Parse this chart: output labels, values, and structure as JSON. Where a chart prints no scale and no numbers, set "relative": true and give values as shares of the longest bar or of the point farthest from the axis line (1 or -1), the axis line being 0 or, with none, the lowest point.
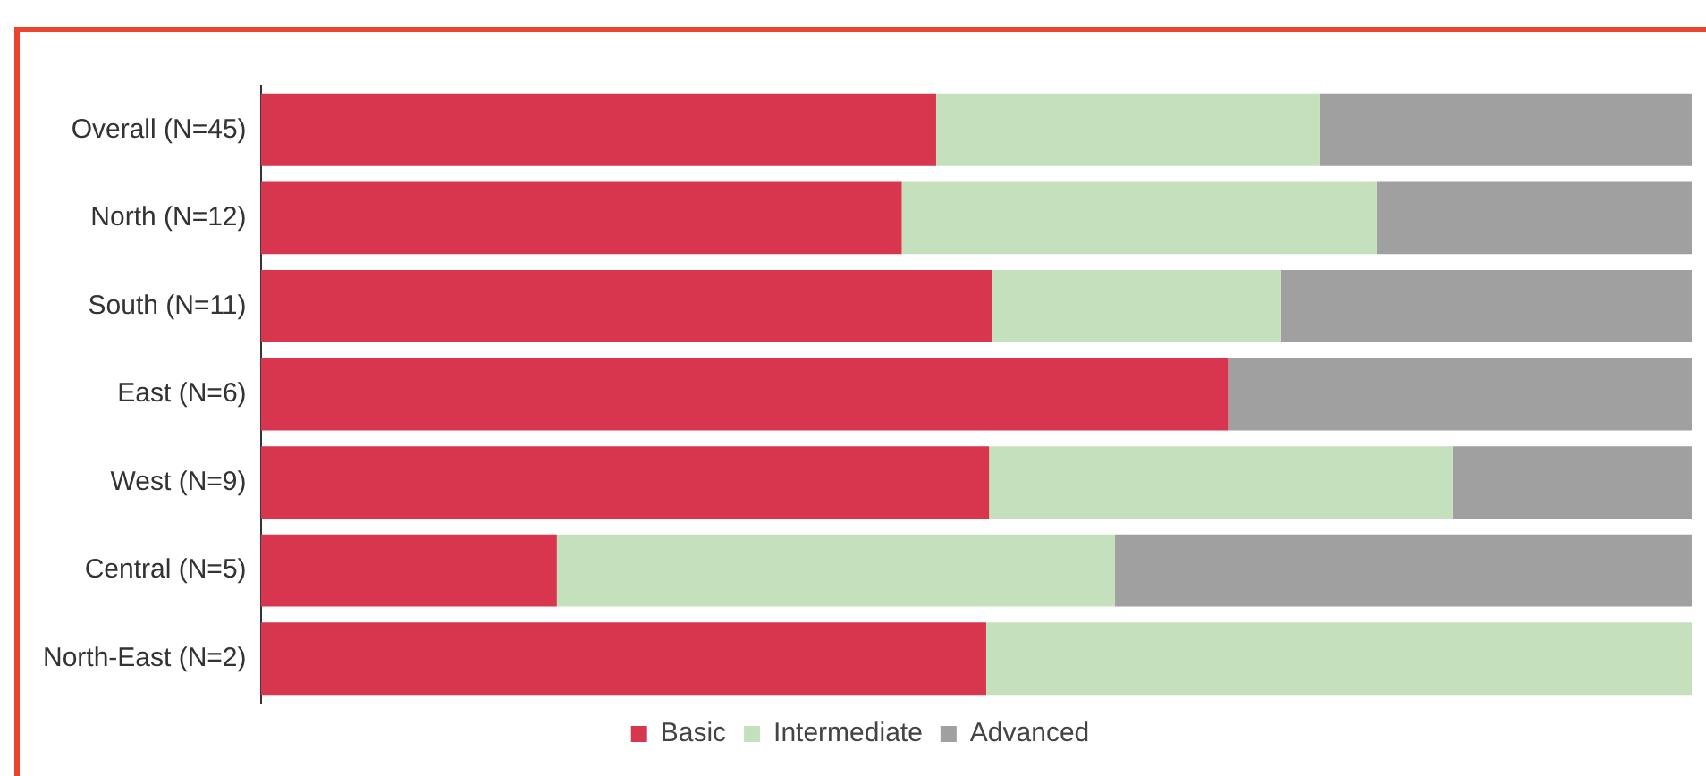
{
  "chart_data": {
    "type": "bar",
    "orientation": "horizontal",
    "stacked": true,
    "relative": true,
    "legend": "bottom",
    "categories": [
      "Overall (N=45)",
      "North (N=12)",
      "South (N=11)",
      "East (N=6)",
      "West (N=9)",
      "Central (N=5)",
      "North-East (N=2)"
    ],
    "series": [
      {
        "name": "Basic",
        "color": "#d7364e",
        "values": [
          0.472,
          0.448,
          0.511,
          0.676,
          0.509,
          0.207,
          0.507
        ]
      },
      {
        "name": "Intermediate",
        "color": "#c4e0bc",
        "values": [
          0.268,
          0.332,
          0.202,
          0,
          0.324,
          0.39,
          0.493
        ]
      },
      {
        "name": "Advanced",
        "color": "#a0a0a0",
        "values": [
          0.26,
          0.22,
          0.287,
          0.324,
          0.167,
          0.403,
          0
        ]
      }
    ]
  }
}
